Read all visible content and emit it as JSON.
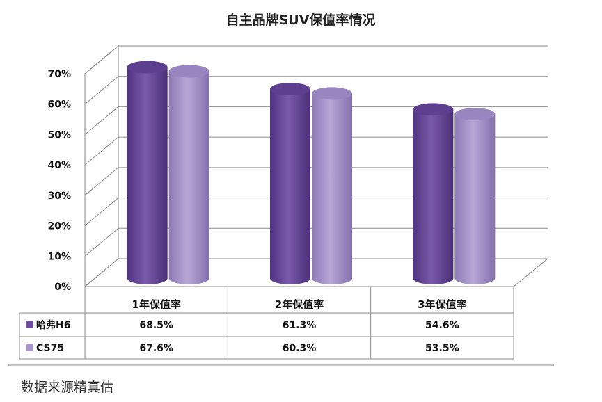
{
  "chart_data": {
    "type": "bar",
    "title": "自主品牌SUV保值率情况",
    "categories": [
      "1年保值率",
      "2年保值率",
      "3年保值率"
    ],
    "series": [
      {
        "name": "哈弗H6",
        "values": [
          68.5,
          61.3,
          54.6
        ],
        "labels": [
          "68.5%",
          "61.3%",
          "54.6%"
        ],
        "color": "#6f4f9d"
      },
      {
        "name": "CS75",
        "values": [
          67.6,
          60.3,
          53.5
        ],
        "labels": [
          "67.6%",
          "60.3%",
          "53.5%"
        ],
        "color": "#a896c9"
      }
    ],
    "yticks": [
      "0%",
      "10%",
      "20%",
      "30%",
      "40%",
      "50%",
      "60%",
      "70%"
    ],
    "ylim": [
      0,
      70
    ],
    "grid": true,
    "legend": "data-table-left",
    "data_table": true
  },
  "footer": {
    "source": "数据来源精真估"
  }
}
